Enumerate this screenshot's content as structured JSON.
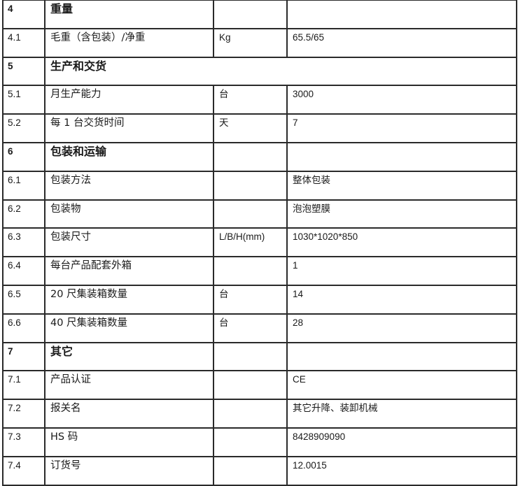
{
  "rows": [
    {
      "no": "4",
      "item": "重量",
      "unit": "",
      "value": "",
      "section": true
    },
    {
      "no": "4.1",
      "item": "毛重（含包装）/净重",
      "unit": "Kg",
      "value": "65.5/65"
    },
    {
      "no": "5",
      "item": "生产和交货",
      "section": true,
      "merged": true
    },
    {
      "no": "5.1",
      "item": "月生产能力",
      "unit": "台",
      "value": "3000"
    },
    {
      "no": "5.2",
      "item": "每 1 台交货时间",
      "unit": "天",
      "value": "7"
    },
    {
      "no": "6",
      "item": "包装和运输",
      "unit": "",
      "value": "",
      "section": true
    },
    {
      "no": "6.1",
      "item": "包装方法",
      "unit": "",
      "value": "整体包装"
    },
    {
      "no": "6.2",
      "item": "包装物",
      "unit": "",
      "value": "泡泡塑膜"
    },
    {
      "no": "6.3",
      "item": "包装尺寸",
      "unit": "L/B/H(mm)",
      "value": "1030*1020*850"
    },
    {
      "no": "6.4",
      "item": "每台产品配套外箱",
      "unit": "",
      "value": "1"
    },
    {
      "no": "6.5",
      "item": "20 尺集装箱数量",
      "unit": "台",
      "value": "14"
    },
    {
      "no": "6.6",
      "item": "40 尺集装箱数量",
      "unit": "台",
      "value": "28"
    },
    {
      "no": "7",
      "item": "其它",
      "unit": "",
      "value": "",
      "section": true
    },
    {
      "no": "7.1",
      "item": "产品认证",
      "unit": "",
      "value": "CE"
    },
    {
      "no": "7.2",
      "item": "报关名",
      "unit": "",
      "value": "其它升降、装卸机械"
    },
    {
      "no": "7.3",
      "item": "HS 码",
      "unit": "",
      "value": "8428909090"
    },
    {
      "no": "7.4",
      "item": "订货号",
      "unit": "",
      "value": "12.0015"
    }
  ]
}
